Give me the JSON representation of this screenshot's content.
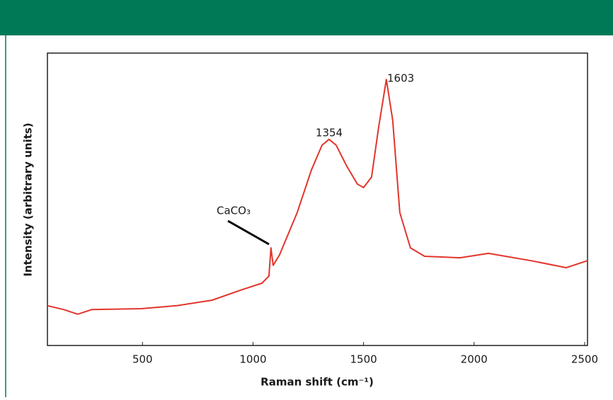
{
  "chart_data": {
    "type": "line",
    "x_label": "Raman shift (cm⁻¹)",
    "y_label": "Intensity (arbitrary units)",
    "annotations": [
      "CaCO₃",
      "1354",
      "1603"
    ],
    "x": [
      70,
      143,
      207,
      271,
      495,
      655,
      815,
      943,
      1040,
      1072,
      1081,
      1091,
      1120,
      1200,
      1264,
      1312,
      1344,
      1376,
      1424,
      1472,
      1500,
      1536,
      1568,
      1603,
      1632,
      1664,
      1712,
      1776,
      1936,
      2065,
      2257,
      2417,
      2513
    ],
    "values": [
      13.6,
      12.3,
      10.7,
      12.3,
      12.6,
      13.6,
      15.5,
      18.9,
      21.3,
      23.7,
      33.4,
      27.4,
      31,
      45.5,
      60,
      68.5,
      70.5,
      68.5,
      61.3,
      55.2,
      54,
      57.6,
      74.6,
      91,
      77,
      45.5,
      33.4,
      30.5,
      30,
      31.5,
      29,
      26.6,
      29
    ],
    "color": "#e2352b",
    "xlim": [
      70,
      2513
    ],
    "xticks": [
      500,
      1000,
      1500,
      2000,
      2500
    ],
    "ylim": [
      0,
      100
    ]
  }
}
